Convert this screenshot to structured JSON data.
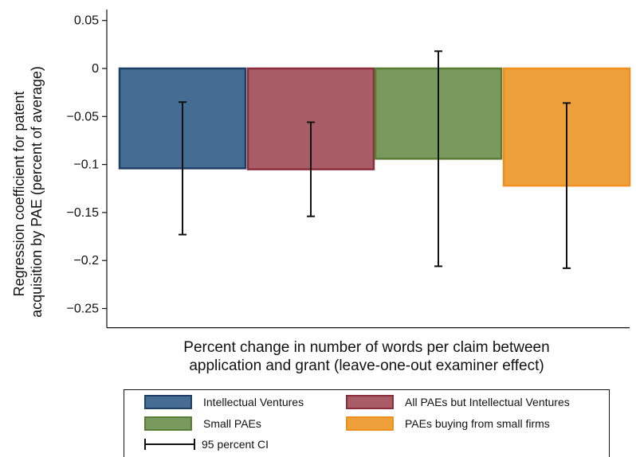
{
  "chart_data": {
    "type": "bar",
    "ylabel_line1": "Regression coefficient for patent",
    "ylabel_line2": "acquisition by PAE (percent of average)",
    "xlabel_line1": "Percent change in number of words per claim between",
    "xlabel_line2": "application and grant (leave-one-out examiner effect)",
    "ylim": [
      -0.27,
      0.06
    ],
    "yticks": [
      0.05,
      0,
      -0.05,
      -0.1,
      -0.15,
      -0.2,
      -0.25
    ],
    "ytick_labels": [
      "0.05",
      "0",
      "−0.05",
      "−0.1",
      "−0.15",
      "−0.2",
      "−0.25"
    ],
    "series": [
      {
        "name": "Intellectual Ventures",
        "value": -0.104,
        "ci_low": -0.173,
        "ci_high": -0.035,
        "color": "#456c93",
        "border": "#1f3f66"
      },
      {
        "name": "All PAEs but Intellectual Ventures",
        "value": -0.105,
        "ci_low": -0.154,
        "ci_high": -0.056,
        "color": "#a85c66",
        "border": "#8b2f3d"
      },
      {
        "name": "Small PAEs",
        "value": -0.094,
        "ci_low": -0.206,
        "ci_high": 0.018,
        "color": "#799a5c",
        "border": "#5a7d36"
      },
      {
        "name": "PAEs buying from small firms",
        "value": -0.122,
        "ci_low": -0.208,
        "ci_high": -0.036,
        "color": "#eea13b",
        "border": "#f08f1f"
      }
    ],
    "legend_ci_label": "95 percent CI",
    "legend_position": "bottom"
  }
}
